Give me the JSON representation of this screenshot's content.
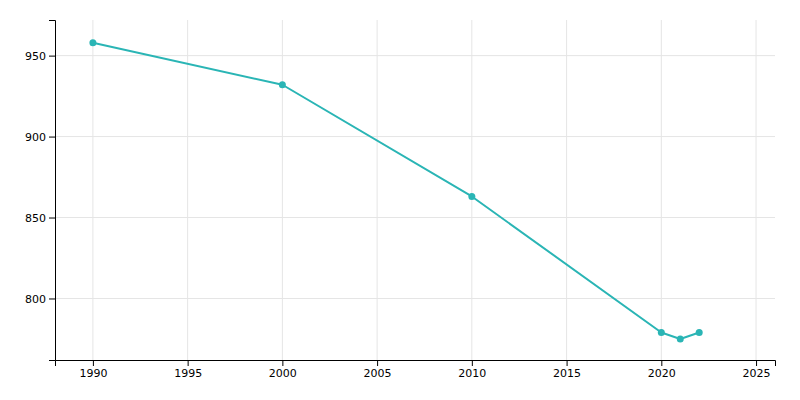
{
  "chart_data": {
    "type": "line",
    "x": [
      1990,
      2000,
      2010,
      2020,
      2021,
      2022
    ],
    "values": [
      958,
      932,
      863,
      779,
      775,
      779
    ],
    "color": "#2ab5b5",
    "marker": "circle",
    "xlim": [
      1988,
      2026
    ],
    "ylim": [
      762,
      972
    ],
    "xticks": [
      1990,
      1995,
      2000,
      2005,
      2010,
      2015,
      2020,
      2025
    ],
    "yticks": [
      800,
      850,
      900,
      950
    ],
    "grid": true
  }
}
